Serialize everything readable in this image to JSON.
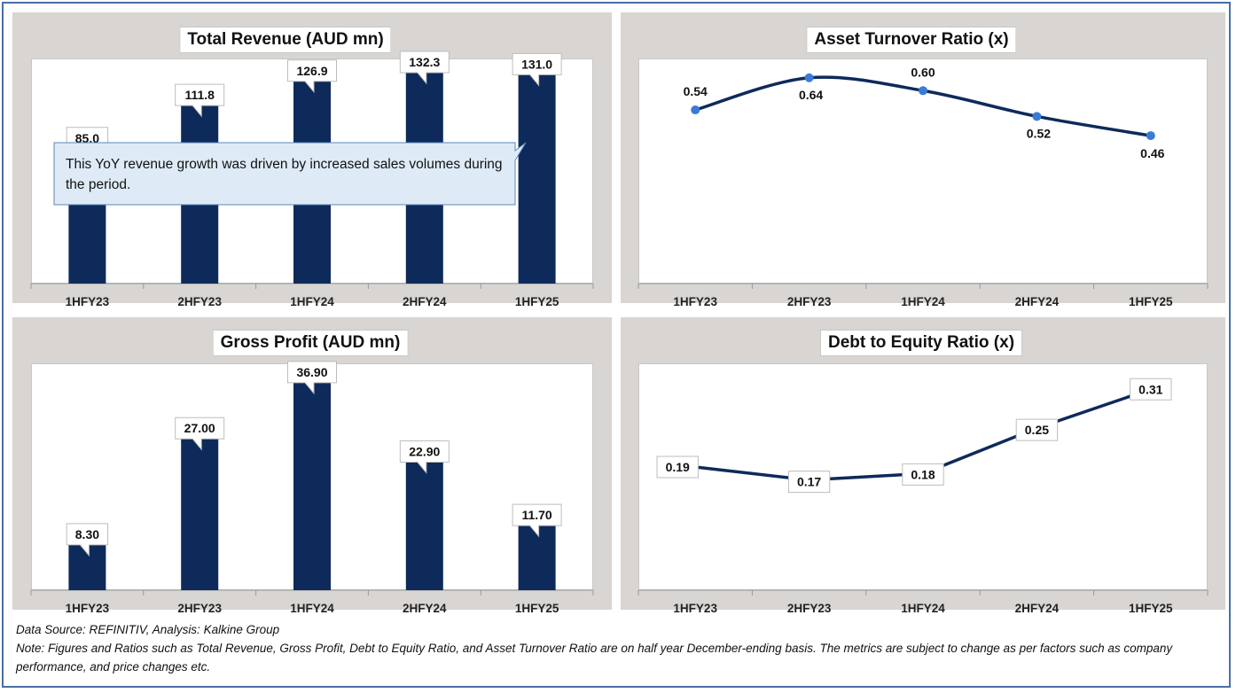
{
  "chart_data": [
    {
      "type": "bar",
      "title": "Total Revenue (AUD mn)",
      "categories": [
        "1HFY23",
        "2HFY23",
        "1HFY24",
        "2HFY24",
        "1HFY25"
      ],
      "values": [
        85.0,
        111.8,
        126.9,
        132.3,
        131.0
      ],
      "labels": [
        "85.0",
        "111.8",
        "126.9",
        "132.3",
        "131.0"
      ],
      "ylim": [
        0,
        140
      ],
      "color": "#0e2a5a",
      "annotation": "This  YoY revenue growth was driven by increased sales volumes during the period."
    },
    {
      "type": "line",
      "title": "Asset Turnover Ratio (x)",
      "categories": [
        "1HFY23",
        "2HFY23",
        "1HFY24",
        "2HFY24",
        "1HFY25"
      ],
      "values": [
        0.54,
        0.64,
        0.6,
        0.52,
        0.46
      ],
      "labels": [
        "0.54",
        "0.64",
        "0.60",
        "0.52",
        "0.46"
      ],
      "ylim": [
        0.0,
        0.7
      ],
      "color": "#0e2a5a",
      "marker_color": "#3a7bd5"
    },
    {
      "type": "bar",
      "title": "Gross Profit (AUD mn)",
      "categories": [
        "1HFY23",
        "2HFY23",
        "1HFY24",
        "2HFY24",
        "1HFY25"
      ],
      "values": [
        8.3,
        27.0,
        36.9,
        22.9,
        11.7
      ],
      "labels": [
        "8.30",
        "27.00",
        "36.90",
        "22.90",
        "11.70"
      ],
      "ylim": [
        0,
        40
      ],
      "color": "#0e2a5a"
    },
    {
      "type": "line",
      "title": "Debt to Equity Ratio (x)",
      "categories": [
        "1HFY23",
        "2HFY23",
        "1HFY24",
        "2HFY24",
        "1HFY25"
      ],
      "values": [
        0.19,
        0.17,
        0.18,
        0.25,
        0.31
      ],
      "labels": [
        "0.19",
        "0.17",
        "0.18",
        "0.25",
        "0.31"
      ],
      "ylim": [
        0.0,
        0.35
      ],
      "color": "#0e2a5a"
    }
  ],
  "footer": {
    "source": "Data Source: REFINITIV, Analysis: Kalkine Group",
    "note": "Note: Figures and Ratios such as Total Revenue, Gross Profit, Debt to Equity Ratio, and Asset Turnover Ratio are on half year December-ending basis. The metrics are subject to change as per factors such as company performance, and price changes etc."
  }
}
